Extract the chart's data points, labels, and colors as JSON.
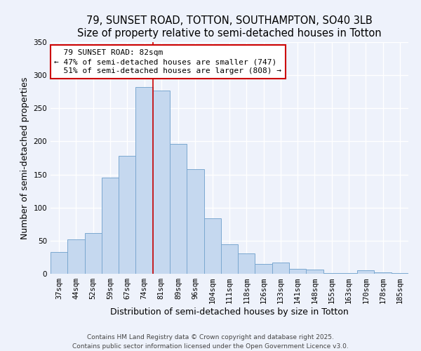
{
  "title": "79, SUNSET ROAD, TOTTON, SOUTHAMPTON, SO40 3LB",
  "subtitle": "Size of property relative to semi-detached houses in Totton",
  "xlabel": "Distribution of semi-detached houses by size in Totton",
  "ylabel": "Number of semi-detached properties",
  "footer1": "Contains HM Land Registry data © Crown copyright and database right 2025.",
  "footer2": "Contains public sector information licensed under the Open Government Licence v3.0.",
  "categories": [
    "37sqm",
    "44sqm",
    "52sqm",
    "59sqm",
    "67sqm",
    "74sqm",
    "81sqm",
    "89sqm",
    "96sqm",
    "104sqm",
    "111sqm",
    "118sqm",
    "126sqm",
    "133sqm",
    "141sqm",
    "148sqm",
    "155sqm",
    "163sqm",
    "170sqm",
    "178sqm",
    "185sqm"
  ],
  "values": [
    33,
    52,
    62,
    145,
    178,
    282,
    277,
    196,
    158,
    84,
    45,
    31,
    15,
    17,
    7,
    6,
    1,
    1,
    5,
    2,
    1
  ],
  "bar_color": "#c5d8ef",
  "bar_edge_color": "#7ba8d0",
  "property_line_index": 6,
  "property_label": "79 SUNSET ROAD: 82sqm",
  "pct_smaller": 47,
  "count_smaller": 747,
  "pct_larger": 51,
  "count_larger": 808,
  "annotation_box_color": "#ffffff",
  "annotation_border_color": "#cc0000",
  "line_color": "#cc0000",
  "ylim": [
    0,
    350
  ],
  "yticks": [
    0,
    50,
    100,
    150,
    200,
    250,
    300,
    350
  ],
  "background_color": "#eef2fb",
  "grid_color": "#ffffff",
  "title_fontsize": 10.5,
  "axis_label_fontsize": 9,
  "tick_fontsize": 7.5,
  "annotation_fontsize": 8,
  "footer_fontsize": 6.5
}
